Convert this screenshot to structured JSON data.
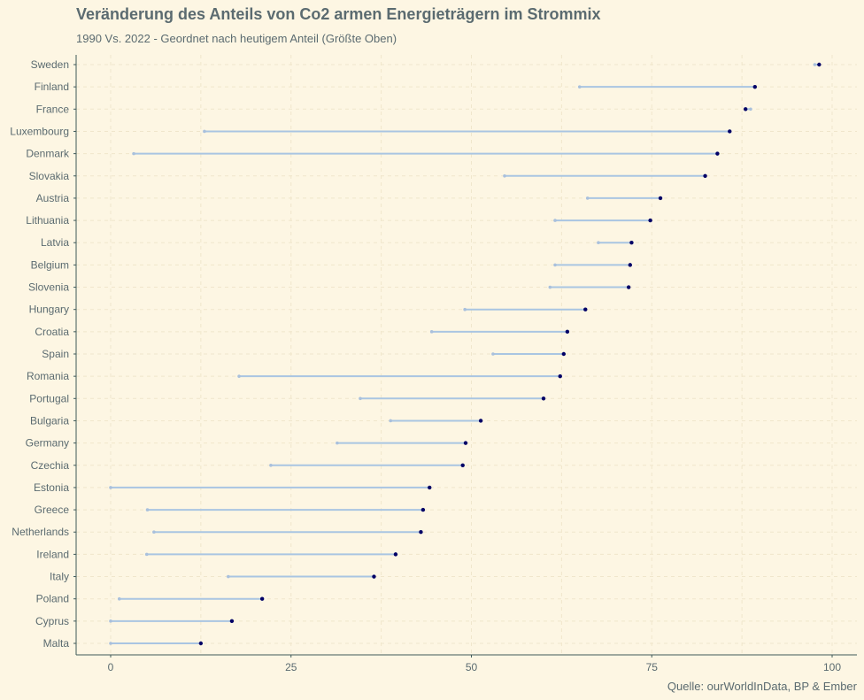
{
  "chart_data": {
    "type": "dumbbell",
    "title": "Veränderung des Anteils von Co2 armen Energieträgern im Strommix",
    "subtitle": "1990 Vs. 2022 - Geordnet nach heutigem Anteil (Größte Oben)",
    "caption": "Quelle: ourWorldInData, BP & Ember",
    "xlabel": "",
    "ylabel": "",
    "xlim": [
      -4.5,
      103
    ],
    "xticks": [
      0,
      25,
      50,
      75,
      100
    ],
    "grid": true,
    "legend": "none",
    "colors": {
      "value_1990": "#a9c0dc",
      "value_2022": "#000066",
      "segment": "#a9c5e2",
      "background": "#fdf6e3",
      "grid": "#f0e6cc",
      "text": "#5b6b70"
    },
    "series": [
      {
        "key": "1990"
      },
      {
        "key": "2022"
      }
    ],
    "countries": [
      {
        "name": "Sweden",
        "v1990": 97.6,
        "v2022": 98.2
      },
      {
        "name": "Finland",
        "v1990": 65.0,
        "v2022": 89.3
      },
      {
        "name": "France",
        "v1990": 88.7,
        "v2022": 88.0
      },
      {
        "name": "Luxembourg",
        "v1990": 13.0,
        "v2022": 85.8
      },
      {
        "name": "Denmark",
        "v1990": 3.2,
        "v2022": 84.1
      },
      {
        "name": "Slovakia",
        "v1990": 54.6,
        "v2022": 82.4
      },
      {
        "name": "Austria",
        "v1990": 66.1,
        "v2022": 76.2
      },
      {
        "name": "Lithuania",
        "v1990": 61.6,
        "v2022": 74.8
      },
      {
        "name": "Latvia",
        "v1990": 67.6,
        "v2022": 72.2
      },
      {
        "name": "Belgium",
        "v1990": 61.6,
        "v2022": 72.0
      },
      {
        "name": "Slovenia",
        "v1990": 60.9,
        "v2022": 71.8
      },
      {
        "name": "Hungary",
        "v1990": 49.1,
        "v2022": 65.8
      },
      {
        "name": "Croatia",
        "v1990": 44.5,
        "v2022": 63.3
      },
      {
        "name": "Spain",
        "v1990": 53.0,
        "v2022": 62.8
      },
      {
        "name": "Romania",
        "v1990": 17.8,
        "v2022": 62.3
      },
      {
        "name": "Portugal",
        "v1990": 34.6,
        "v2022": 60.0
      },
      {
        "name": "Bulgaria",
        "v1990": 38.8,
        "v2022": 51.3
      },
      {
        "name": "Germany",
        "v1990": 31.4,
        "v2022": 49.2
      },
      {
        "name": "Czechia",
        "v1990": 22.2,
        "v2022": 48.8
      },
      {
        "name": "Estonia",
        "v1990": 0.0,
        "v2022": 44.2
      },
      {
        "name": "Greece",
        "v1990": 5.1,
        "v2022": 43.3
      },
      {
        "name": "Netherlands",
        "v1990": 6.0,
        "v2022": 43.0
      },
      {
        "name": "Ireland",
        "v1990": 5.0,
        "v2022": 39.5
      },
      {
        "name": "Italy",
        "v1990": 16.3,
        "v2022": 36.5
      },
      {
        "name": "Poland",
        "v1990": 1.2,
        "v2022": 21.0
      },
      {
        "name": "Cyprus",
        "v1990": 0.0,
        "v2022": 16.8
      },
      {
        "name": "Malta",
        "v1990": 0.0,
        "v2022": 12.5
      }
    ]
  }
}
